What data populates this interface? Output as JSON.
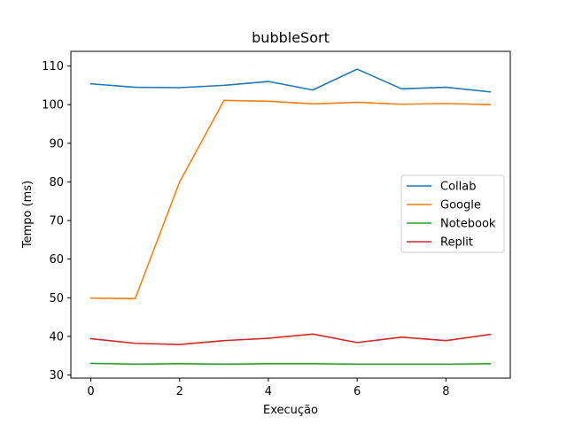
{
  "chart_data": {
    "type": "line",
    "title": "bubbleSort",
    "xlabel": "Execução",
    "ylabel": "Tempo (ms)",
    "xlim": [
      -0.45,
      9.45
    ],
    "ylim": [
      29.2,
      113.8
    ],
    "xticks": [
      0,
      2,
      4,
      6,
      8
    ],
    "yticks": [
      30,
      40,
      50,
      60,
      70,
      80,
      90,
      100,
      110
    ],
    "grid": false,
    "legend_position": "center-right",
    "x": [
      0,
      1,
      2,
      3,
      4,
      5,
      6,
      7,
      8,
      9
    ],
    "series": [
      {
        "name": "Collab",
        "color": "#1f77b4",
        "values": [
          105.4,
          104.5,
          104.4,
          105.0,
          106.0,
          103.8,
          109.2,
          104.1,
          104.5,
          103.3
        ]
      },
      {
        "name": "Google",
        "color": "#ff7f0e",
        "values": [
          49.9,
          49.8,
          80.0,
          101.1,
          100.9,
          100.2,
          100.6,
          100.1,
          100.3,
          100.0
        ]
      },
      {
        "name": "Notebook",
        "color": "#2ca02c",
        "values": [
          33.0,
          32.8,
          32.9,
          32.8,
          32.9,
          32.9,
          32.8,
          32.8,
          32.8,
          32.9
        ]
      },
      {
        "name": "Replit",
        "color": "#d62728",
        "values": [
          39.4,
          38.2,
          37.9,
          38.9,
          39.5,
          40.6,
          38.4,
          39.8,
          38.9,
          40.5
        ]
      }
    ]
  }
}
